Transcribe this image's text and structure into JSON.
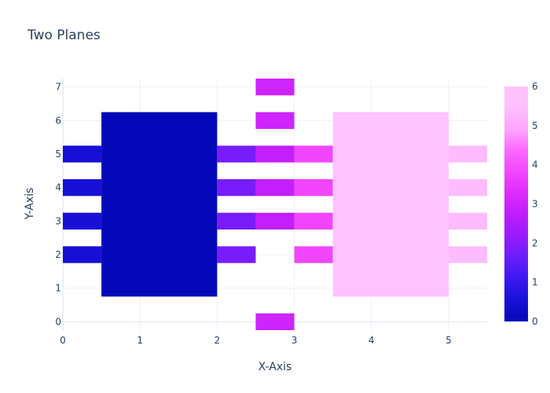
{
  "chart_data": {
    "type": "heatmap",
    "title": "Two Planes",
    "xlabel": "X-Axis",
    "ylabel": "Y-Axis",
    "xlim": [
      0,
      5.5
    ],
    "ylim": [
      -0.25,
      7.25
    ],
    "x_ticks": [
      "0",
      "1",
      "2",
      "3",
      "4",
      "5"
    ],
    "y_ticks": [
      "0",
      "1",
      "2",
      "3",
      "4",
      "5",
      "6",
      "7"
    ],
    "colorscale": [
      "#0508b8",
      "#1910d8",
      "#3c19f0",
      "#6b1cfb",
      "#981cfd",
      "#bf1cfd",
      "#dd2bfd",
      "#f246fe",
      "#fc67fd",
      "#fea5fd",
      "#febefe",
      "#fec3fe"
    ],
    "zmin": 0,
    "zmax": 6,
    "colorbar_ticks": [
      "0",
      "1",
      "2",
      "3",
      "4",
      "5",
      "6"
    ],
    "grid": true,
    "cells": [
      {
        "x0": 0.5,
        "x1": 2.0,
        "y0": 0.75,
        "y1": 6.25,
        "z": 0
      },
      {
        "x0": 0.0,
        "x1": 0.5,
        "y0": 4.75,
        "y1": 5.25,
        "z": 0.5
      },
      {
        "x0": 0.0,
        "x1": 0.5,
        "y0": 3.75,
        "y1": 4.25,
        "z": 0.5
      },
      {
        "x0": 0.0,
        "x1": 0.5,
        "y0": 2.75,
        "y1": 3.25,
        "z": 0.5
      },
      {
        "x0": 0.0,
        "x1": 0.5,
        "y0": 1.75,
        "y1": 2.25,
        "z": 0.5
      },
      {
        "x0": 2.0,
        "x1": 2.5,
        "y0": 4.75,
        "y1": 5.25,
        "z": 1.8
      },
      {
        "x0": 2.0,
        "x1": 2.5,
        "y0": 3.75,
        "y1": 4.25,
        "z": 1.8
      },
      {
        "x0": 2.0,
        "x1": 2.5,
        "y0": 2.75,
        "y1": 3.25,
        "z": 1.8
      },
      {
        "x0": 2.0,
        "x1": 2.5,
        "y0": 1.75,
        "y1": 2.25,
        "z": 1.8
      },
      {
        "x0": 2.5,
        "x1": 3.0,
        "y0": 6.75,
        "y1": 7.25,
        "z": 3.0
      },
      {
        "x0": 2.5,
        "x1": 3.0,
        "y0": 5.75,
        "y1": 6.25,
        "z": 3.0
      },
      {
        "x0": 2.5,
        "x1": 3.0,
        "y0": 4.75,
        "y1": 5.25,
        "z": 2.8
      },
      {
        "x0": 2.5,
        "x1": 3.0,
        "y0": 3.75,
        "y1": 4.25,
        "z": 2.8
      },
      {
        "x0": 2.5,
        "x1": 3.0,
        "y0": 2.75,
        "y1": 3.25,
        "z": 2.8
      },
      {
        "x0": 2.5,
        "x1": 3.0,
        "y0": -0.25,
        "y1": 0.25,
        "z": 3.0
      },
      {
        "x0": 3.0,
        "x1": 3.5,
        "y0": 4.75,
        "y1": 5.25,
        "z": 3.8
      },
      {
        "x0": 3.0,
        "x1": 3.5,
        "y0": 3.75,
        "y1": 4.25,
        "z": 3.8
      },
      {
        "x0": 3.0,
        "x1": 3.5,
        "y0": 2.75,
        "y1": 3.25,
        "z": 3.8
      },
      {
        "x0": 3.0,
        "x1": 3.5,
        "y0": 1.75,
        "y1": 2.25,
        "z": 3.8
      },
      {
        "x0": 3.5,
        "x1": 5.0,
        "y0": 0.75,
        "y1": 6.25,
        "z": 6
      },
      {
        "x0": 5.0,
        "x1": 5.5,
        "y0": 4.75,
        "y1": 5.25,
        "z": 5.4
      },
      {
        "x0": 5.0,
        "x1": 5.5,
        "y0": 3.75,
        "y1": 4.25,
        "z": 5.4
      },
      {
        "x0": 5.0,
        "x1": 5.5,
        "y0": 2.75,
        "y1": 3.25,
        "z": 5.4
      },
      {
        "x0": 5.0,
        "x1": 5.5,
        "y0": 1.75,
        "y1": 2.25,
        "z": 5.4
      }
    ]
  }
}
